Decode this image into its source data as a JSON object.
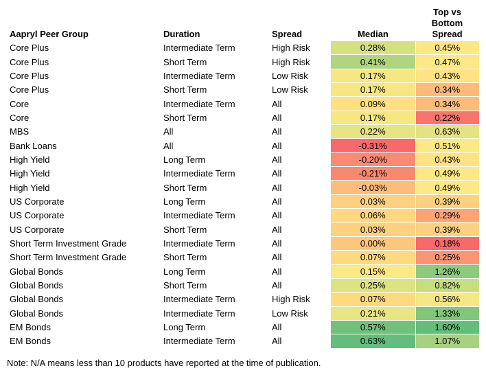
{
  "headers": {
    "group": "Aapryl Peer Group",
    "duration": "Duration",
    "spread": "Spread",
    "median": "Median",
    "topbottom_line1": "Top vs",
    "topbottom_line2": "Bottom",
    "topbottom_line3": "Spread"
  },
  "rows": [
    {
      "group": "Core Plus",
      "duration": "Intermediate Term",
      "spread": "High Risk",
      "median": "0.28%",
      "median_color": "#d5e181",
      "top": "0.45%",
      "top_color": "#fce783"
    },
    {
      "group": "Core Plus",
      "duration": "Short Term",
      "spread": "High Risk",
      "median": "0.41%",
      "median_color": "#b0d57f",
      "top": "0.47%",
      "top_color": "#fde885"
    },
    {
      "group": "Core Plus",
      "duration": "Intermediate Term",
      "spread": "Low Risk",
      "median": "0.17%",
      "median_color": "#f6e783",
      "top": "0.43%",
      "top_color": "#fee283"
    },
    {
      "group": "Core Plus",
      "duration": "Short Term",
      "spread": "Low Risk",
      "median": "0.17%",
      "median_color": "#f6e783",
      "top": "0.34%",
      "top_color": "#fdbb7b"
    },
    {
      "group": "Core",
      "duration": "Intermediate Term",
      "spread": "All",
      "median": "0.09%",
      "median_color": "#fee081",
      "top": "0.34%",
      "top_color": "#fdbb7b"
    },
    {
      "group": "Core",
      "duration": "Short Term",
      "spread": "All",
      "median": "0.17%",
      "median_color": "#f6e783",
      "top": "0.22%",
      "top_color": "#f8746d"
    },
    {
      "group": "MBS",
      "duration": "All",
      "spread": "All",
      "median": "0.22%",
      "median_color": "#e6e483",
      "top": "0.63%",
      "top_color": "#e4e383"
    },
    {
      "group": "Bank Loans",
      "duration": "All",
      "spread": "All",
      "median": "-0.31%",
      "median_color": "#f8696b",
      "top": "0.51%",
      "top_color": "#fde885"
    },
    {
      "group": "High Yield",
      "duration": "Long Term",
      "spread": "All",
      "median": "-0.20%",
      "median_color": "#f98b72",
      "top": "0.43%",
      "top_color": "#fee283"
    },
    {
      "group": "High Yield",
      "duration": "Intermediate Term",
      "spread": "All",
      "median": "-0.21%",
      "median_color": "#f98870",
      "top": "0.49%",
      "top_color": "#fde885"
    },
    {
      "group": "High Yield",
      "duration": "Short Term",
      "spread": "All",
      "median": "-0.03%",
      "median_color": "#fcbd7b",
      "top": "0.49%",
      "top_color": "#fde885"
    },
    {
      "group": "US Corporate",
      "duration": "Long Term",
      "spread": "All",
      "median": "0.03%",
      "median_color": "#fdd17f",
      "top": "0.39%",
      "top_color": "#fdd17f"
    },
    {
      "group": "US Corporate",
      "duration": "Intermediate Term",
      "spread": "All",
      "median": "0.06%",
      "median_color": "#fdd880",
      "top": "0.29%",
      "top_color": "#fba477"
    },
    {
      "group": "US Corporate",
      "duration": "Short Term",
      "spread": "All",
      "median": "0.03%",
      "median_color": "#fdd17f",
      "top": "0.39%",
      "top_color": "#fdd17f"
    },
    {
      "group": "Short Term Investment Grade",
      "duration": "Intermediate Term",
      "spread": "All",
      "median": "0.00%",
      "median_color": "#fcc77d",
      "top": "0.18%",
      "top_color": "#f8696b"
    },
    {
      "group": "Short Term Investment Grade",
      "duration": "Short Term",
      "spread": "All",
      "median": "0.07%",
      "median_color": "#fdda80",
      "top": "0.25%",
      "top_color": "#fa9473"
    },
    {
      "group": "Global Bonds",
      "duration": "Long Term",
      "spread": "All",
      "median": "0.15%",
      "median_color": "#fbe983",
      "top": "1.26%",
      "top_color": "#8ccb7e"
    },
    {
      "group": "Global Bonds",
      "duration": "Short Term",
      "spread": "All",
      "median": "0.25%",
      "median_color": "#dde282",
      "top": "0.82%",
      "top_color": "#c8dd81"
    },
    {
      "group": "Global Bonds",
      "duration": "Intermediate Term",
      "spread": "High Risk",
      "median": "0.07%",
      "median_color": "#fdda80",
      "top": "0.56%",
      "top_color": "#f5e784"
    },
    {
      "group": "Global Bonds",
      "duration": "Intermediate Term",
      "spread": "Low Risk",
      "median": "0.21%",
      "median_color": "#eae583",
      "top": "1.33%",
      "top_color": "#80c67c"
    },
    {
      "group": "EM Bonds",
      "duration": "Long Term",
      "spread": "All",
      "median": "0.57%",
      "median_color": "#71c17b",
      "top": "1.60%",
      "top_color": "#63be7b"
    },
    {
      "group": "EM Bonds",
      "duration": "Intermediate Term",
      "spread": "All",
      "median": "0.63%",
      "median_color": "#63be7b",
      "top": "1.07%",
      "top_color": "#a6d27f"
    }
  ],
  "note": "Note: N/A means less than 10 products have reported at the time of publication."
}
